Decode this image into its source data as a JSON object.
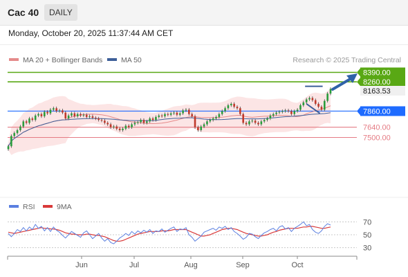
{
  "header": {
    "instrument": "Cac 40",
    "period": "DAILY",
    "datetime": "Monday, October 20, 2025 11:37:44 AM CET"
  },
  "legend": {
    "ma20_label": "MA 20 + Bollinger Bands",
    "ma50_label": "MA 50",
    "credit": "Research © 2025 Trading Central",
    "rsi_label": "RSI",
    "rsi9_label": "9MA"
  },
  "colors": {
    "candle_up": "#2a9d3c",
    "candle_down": "#c0392b",
    "ma20": "#e58a8a",
    "bollinger_fill": "#fbdcdc",
    "ma50": "#3d5f99",
    "level_green": "#59a814",
    "level_blue": "#1e6bff",
    "level_red": "#e57b84",
    "rsi": "#5a7fe0",
    "rsi_ma": "#d93a3a"
  },
  "chart_data": {
    "type": "candlestick",
    "xaxis_months": [
      "Jun",
      "Jul",
      "Aug",
      "Sep",
      "Oct"
    ],
    "levels": [
      {
        "value": 8390.0,
        "label": "8390.00",
        "kind": "resistance",
        "color": "#59a814"
      },
      {
        "value": 8260.0,
        "label": "8260.00",
        "kind": "resistance",
        "color": "#59a814"
      },
      {
        "value": 8163.53,
        "label": "8163.53",
        "kind": "last-price",
        "color": "#222222"
      },
      {
        "value": 7860.0,
        "label": "7860.00",
        "kind": "pivot",
        "color": "#1e6bff"
      },
      {
        "value": 7640.0,
        "label": "7640.00",
        "kind": "support",
        "color": "#e57b84"
      },
      {
        "value": 7500.0,
        "label": "7500.00",
        "kind": "support",
        "color": "#e57b84"
      }
    ],
    "price_range": [
      6700,
      8480
    ],
    "closes": [
      7380,
      7520,
      7560,
      7600,
      7650,
      7720,
      7700,
      7760,
      7740,
      7800,
      7820,
      7790,
      7850,
      7830,
      7880,
      7900,
      7860,
      7870,
      7840,
      7760,
      7800,
      7830,
      7790,
      7820,
      7800,
      7810,
      7780,
      7790,
      7770,
      7760,
      7740,
      7730,
      7700,
      7680,
      7640,
      7650,
      7620,
      7600,
      7620,
      7660,
      7640,
      7680,
      7700,
      7710,
      7740,
      7700,
      7720,
      7760,
      7740,
      7780,
      7800,
      7790,
      7820,
      7810,
      7830,
      7840,
      7810,
      7830,
      7870,
      7880,
      7820,
      7790,
      7640,
      7600,
      7650,
      7680,
      7720,
      7740,
      7760,
      7780,
      7820,
      7860,
      7900,
      7940,
      7960,
      7920,
      7900,
      7820,
      7700,
      7680,
      7720,
      7730,
      7700,
      7680,
      7720,
      7740,
      7760,
      7800,
      7820,
      7840,
      7850,
      7860,
      7870,
      7860,
      7820,
      7860,
      7880,
      7940,
      7980,
      8020,
      8040,
      8010,
      7960,
      7920,
      7880,
      8000,
      8100,
      8163.53
    ],
    "rsi_scale": [
      30,
      50,
      70
    ],
    "rsi": [
      52,
      47,
      52,
      58,
      55,
      61,
      56,
      62,
      58,
      66,
      60,
      63,
      56,
      61,
      55,
      62,
      57,
      54,
      49,
      45,
      50,
      55,
      52,
      49,
      46,
      53,
      56,
      50,
      44,
      48,
      52,
      45,
      40,
      44,
      38,
      36,
      40,
      45,
      48,
      52,
      49,
      55,
      51,
      56,
      53,
      57,
      54,
      58,
      52,
      56,
      55,
      59,
      54,
      57,
      60,
      62,
      55,
      59,
      58,
      61,
      50,
      46,
      40,
      44,
      48,
      54,
      56,
      58,
      60,
      57,
      62,
      60,
      63,
      58,
      61,
      55,
      52,
      48,
      43,
      46,
      52,
      51,
      47,
      44,
      49,
      53,
      55,
      58,
      60,
      56,
      62,
      64,
      59,
      61,
      55,
      60,
      63,
      66,
      70,
      64,
      66,
      58,
      54,
      52,
      56,
      63,
      67,
      65
    ],
    "rsi_ma": [
      54,
      53,
      52,
      53,
      54,
      55,
      56,
      57,
      58,
      59,
      60,
      61,
      60,
      60,
      59,
      59,
      58,
      57,
      55,
      53,
      52,
      51,
      51,
      50,
      50,
      50,
      51,
      51,
      50,
      49,
      49,
      48,
      47,
      45,
      43,
      41,
      40,
      40,
      41,
      43,
      45,
      47,
      49,
      51,
      52,
      53,
      54,
      55,
      55,
      55,
      55,
      56,
      56,
      56,
      57,
      58,
      58,
      58,
      58,
      58,
      56,
      54,
      52,
      50,
      48,
      48,
      49,
      50,
      52,
      54,
      56,
      58,
      59,
      60,
      60,
      59,
      58,
      56,
      54,
      52,
      51,
      50,
      49,
      48,
      48,
      49,
      50,
      52,
      54,
      55,
      57,
      58,
      59,
      60,
      60,
      60,
      60,
      61,
      62,
      62,
      63,
      63,
      62,
      61,
      60,
      60,
      61,
      62
    ]
  }
}
